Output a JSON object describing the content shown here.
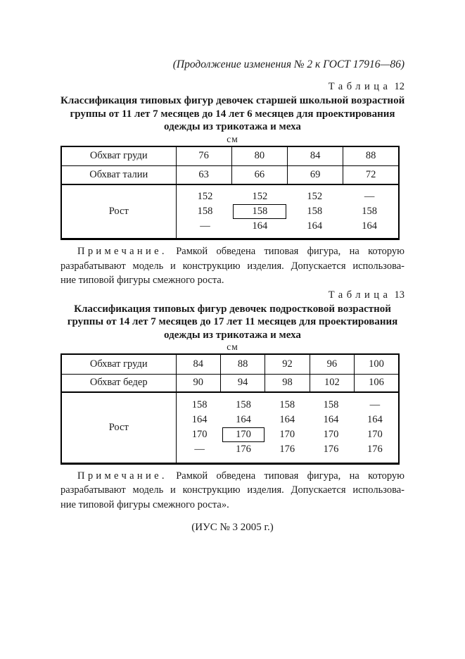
{
  "page": {
    "header_note": "(Продолжение изменения № 2 к ГОСТ 17916—86)",
    "footer_note": "(ИУС № 3 2005 г.)"
  },
  "colors": {
    "text": "#1a1a1a",
    "border": "#000000",
    "background": "#ffffff"
  },
  "table12": {
    "caption_word": "Таблица",
    "caption_number": "12",
    "title_lines": [
      "Классификация типовых фигур девочек старшей школьной возрастной",
      "группы от 11 лет 7 месяцев до 14 лет 6 месяцев для проектирования",
      "одежды из трикотажа и меха"
    ],
    "unit": "см",
    "header_rows": [
      {
        "label": "Обхват груди",
        "values": [
          "76",
          "80",
          "84",
          "88"
        ]
      },
      {
        "label": "Обхват талии",
        "values": [
          "63",
          "66",
          "69",
          "72"
        ]
      }
    ],
    "height_section": {
      "label": "Рост",
      "rows": [
        [
          "152",
          "152",
          "152",
          "—"
        ],
        [
          "158",
          "158",
          "158",
          "158"
        ],
        [
          "—",
          "164",
          "164",
          "164"
        ]
      ],
      "boxed": {
        "row_index": 1,
        "col_index": 1,
        "value": "158"
      }
    },
    "note": {
      "label": "Примечание.",
      "lines": [
        "Рамкой обведена типовая фигура, на которую",
        "разрабатывают модель и конструкцию изделия. Допускается использова-",
        "ние типовой фигуры смежного роста."
      ]
    }
  },
  "table13": {
    "caption_word": "Таблица",
    "caption_number": "13",
    "title_lines": [
      "Классификация типовых фигур девочек подростковой возрастной",
      "группы от 14 лет 7 месяцев до 17 лет 11 месяцев для проектирования",
      "одежды из трикотажа и меха"
    ],
    "unit": "см",
    "header_rows": [
      {
        "label": "Обхват груди",
        "values": [
          "84",
          "88",
          "92",
          "96",
          "100"
        ]
      },
      {
        "label": "Обхват бедер",
        "values": [
          "90",
          "94",
          "98",
          "102",
          "106"
        ]
      }
    ],
    "height_section": {
      "label": "Рост",
      "rows": [
        [
          "158",
          "158",
          "158",
          "158",
          "—"
        ],
        [
          "164",
          "164",
          "164",
          "164",
          "164"
        ],
        [
          "170",
          "170",
          "170",
          "170",
          "170"
        ],
        [
          "—",
          "176",
          "176",
          "176",
          "176"
        ]
      ],
      "boxed": {
        "row_index": 2,
        "col_index": 1,
        "value": "170"
      }
    },
    "note": {
      "label": "Примечание.",
      "lines": [
        "Рамкой обведена типовая фигура, на которую",
        "разрабатывают модель и конструкцию изделия. Допускается использова-",
        "ние типовой фигуры смежного роста»."
      ]
    }
  }
}
